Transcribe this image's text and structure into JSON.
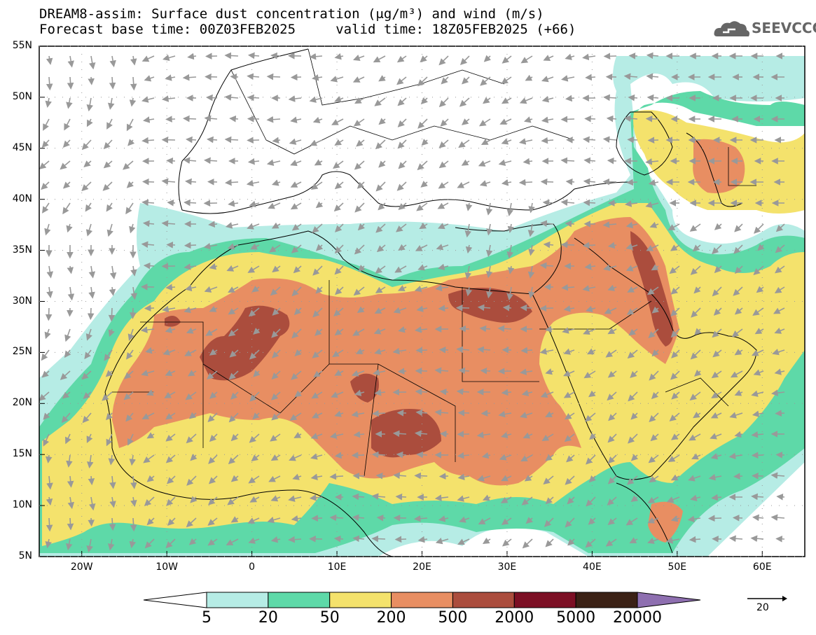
{
  "title": {
    "line1": "DREAM8-assim: Surface dust concentration (μg/m³) and wind (m/s)",
    "line2": "Forecast base time: 00Z03FEB2025     valid time: 18Z05FEB2025 (+66)"
  },
  "logo": {
    "text": "SEEVCCC",
    "icon": "cloud-icon"
  },
  "map": {
    "lat_ticks": [
      "55N",
      "50N",
      "45N",
      "40N",
      "35N",
      "30N",
      "25N",
      "20N",
      "15N",
      "10N",
      "5N"
    ],
    "lon_ticks": [
      "20W",
      "10W",
      "0",
      "10E",
      "20E",
      "30E",
      "40E",
      "50E",
      "60E"
    ],
    "lon_range": [
      -25,
      65
    ],
    "lat_range": [
      5,
      55
    ]
  },
  "colorbar": {
    "levels": [
      "5",
      "20",
      "50",
      "200",
      "500",
      "2000",
      "5000",
      "20000"
    ],
    "colors": [
      "#b6ece5",
      "#5ed9a8",
      "#f4e26c",
      "#e88e62",
      "#ab4d3d",
      "#7c0f24",
      "#3b2115",
      "#8e6fb0"
    ]
  },
  "wind_reference": {
    "label": "20",
    "icon": "arrow-right-icon"
  }
}
